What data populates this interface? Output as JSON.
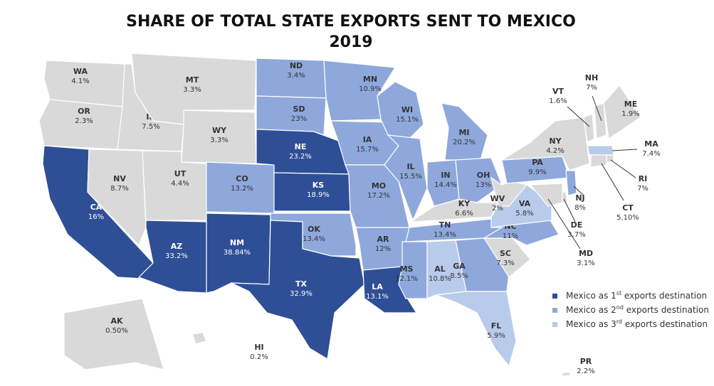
{
  "header": {
    "title": "SHARE OF TOTAL STATE EXPORTS SENT TO MEXICO",
    "subtitle": "2019"
  },
  "no_group_color": "#d9d9d9",
  "legend": [
    {
      "prefix": "Mexico as 1",
      "sup": "st",
      "suffix": " exports destination",
      "color": "#2e4e96"
    },
    {
      "prefix": "Mexico as 2",
      "sup": "nd",
      "suffix": " exports destination",
      "color": "#8ea8dc"
    },
    {
      "prefix": "Mexico as 3",
      "sup": "rd",
      "suffix": " exports destination",
      "color": "#b9cbeb"
    }
  ],
  "states": [
    {
      "abbr": "WA",
      "share": "4.1%",
      "group": null
    },
    {
      "abbr": "OR",
      "share": "2.3%",
      "group": null
    },
    {
      "abbr": "CA",
      "share": "16%",
      "group": 0
    },
    {
      "abbr": "NV",
      "share": "8.7%",
      "group": null
    },
    {
      "abbr": "ID",
      "share": "7.5%",
      "group": null
    },
    {
      "abbr": "MT",
      "share": "3.3%",
      "group": null
    },
    {
      "abbr": "WY",
      "share": "3.3%",
      "group": null
    },
    {
      "abbr": "UT",
      "share": "4.4%",
      "group": null
    },
    {
      "abbr": "AZ",
      "share": "33.2%",
      "group": 0
    },
    {
      "abbr": "CO",
      "share": "13.2%",
      "group": 1
    },
    {
      "abbr": "NM",
      "share": "38.84%",
      "group": 0
    },
    {
      "abbr": "ND",
      "share": "3.4%",
      "group": 1
    },
    {
      "abbr": "SD",
      "share": "23%",
      "group": 1
    },
    {
      "abbr": "NE",
      "share": "23.2%",
      "group": 0
    },
    {
      "abbr": "KS",
      "share": "18.9%",
      "group": 0
    },
    {
      "abbr": "OK",
      "share": "13.4%",
      "group": 1
    },
    {
      "abbr": "TX",
      "share": "32.9%",
      "group": 0
    },
    {
      "abbr": "MN",
      "share": "10.9%",
      "group": 1
    },
    {
      "abbr": "IA",
      "share": "15.7%",
      "group": 1
    },
    {
      "abbr": "MO",
      "share": "17.2%",
      "group": 1
    },
    {
      "abbr": "AR",
      "share": "12%",
      "group": 1
    },
    {
      "abbr": "LA",
      "share": "13.1%",
      "group": 0
    },
    {
      "abbr": "WI",
      "share": "15.1%",
      "group": 1
    },
    {
      "abbr": "IL",
      "share": "15.5%",
      "group": 1
    },
    {
      "abbr": "MI",
      "share": "20.2%",
      "group": 1
    },
    {
      "abbr": "IN",
      "share": "14.4%",
      "group": 1
    },
    {
      "abbr": "OH",
      "share": "13%",
      "group": 1
    },
    {
      "abbr": "KY",
      "share": "6.6%",
      "group": null
    },
    {
      "abbr": "TN",
      "share": "13.4%",
      "group": 1
    },
    {
      "abbr": "MS",
      "share": "12.1%",
      "group": 1
    },
    {
      "abbr": "AL",
      "share": "10.8%",
      "group": 2
    },
    {
      "abbr": "GA",
      "share": "8.5%",
      "group": 1
    },
    {
      "abbr": "FL",
      "share": "5.9%",
      "group": 2
    },
    {
      "abbr": "SC",
      "share": "7.3%",
      "group": null
    },
    {
      "abbr": "NC",
      "share": "11%",
      "group": 1
    },
    {
      "abbr": "VA",
      "share": "5.8%",
      "group": 2
    },
    {
      "abbr": "WV",
      "share": "2%",
      "group": null
    },
    {
      "abbr": "PA",
      "share": "9.9%",
      "group": 1
    },
    {
      "abbr": "NY",
      "share": "4.2%",
      "group": null
    },
    {
      "abbr": "VT",
      "share": "1.6%",
      "group": null
    },
    {
      "abbr": "NH",
      "share": "7%",
      "group": null
    },
    {
      "abbr": "ME",
      "share": "1.9%",
      "group": null
    },
    {
      "abbr": "MA",
      "share": "7.4%",
      "group": 2
    },
    {
      "abbr": "RI",
      "share": "7%",
      "group": null
    },
    {
      "abbr": "CT",
      "share": "5.10%",
      "group": null
    },
    {
      "abbr": "NJ",
      "share": "8%",
      "group": 1
    },
    {
      "abbr": "DE",
      "share": "3.7%",
      "group": null
    },
    {
      "abbr": "MD",
      "share": "3.1%",
      "group": null
    },
    {
      "abbr": "AK",
      "share": "0.50%",
      "group": null
    },
    {
      "abbr": "HI",
      "share": "0.2%",
      "group": null
    },
    {
      "abbr": "PR",
      "share": "2.2%",
      "group": null
    }
  ]
}
